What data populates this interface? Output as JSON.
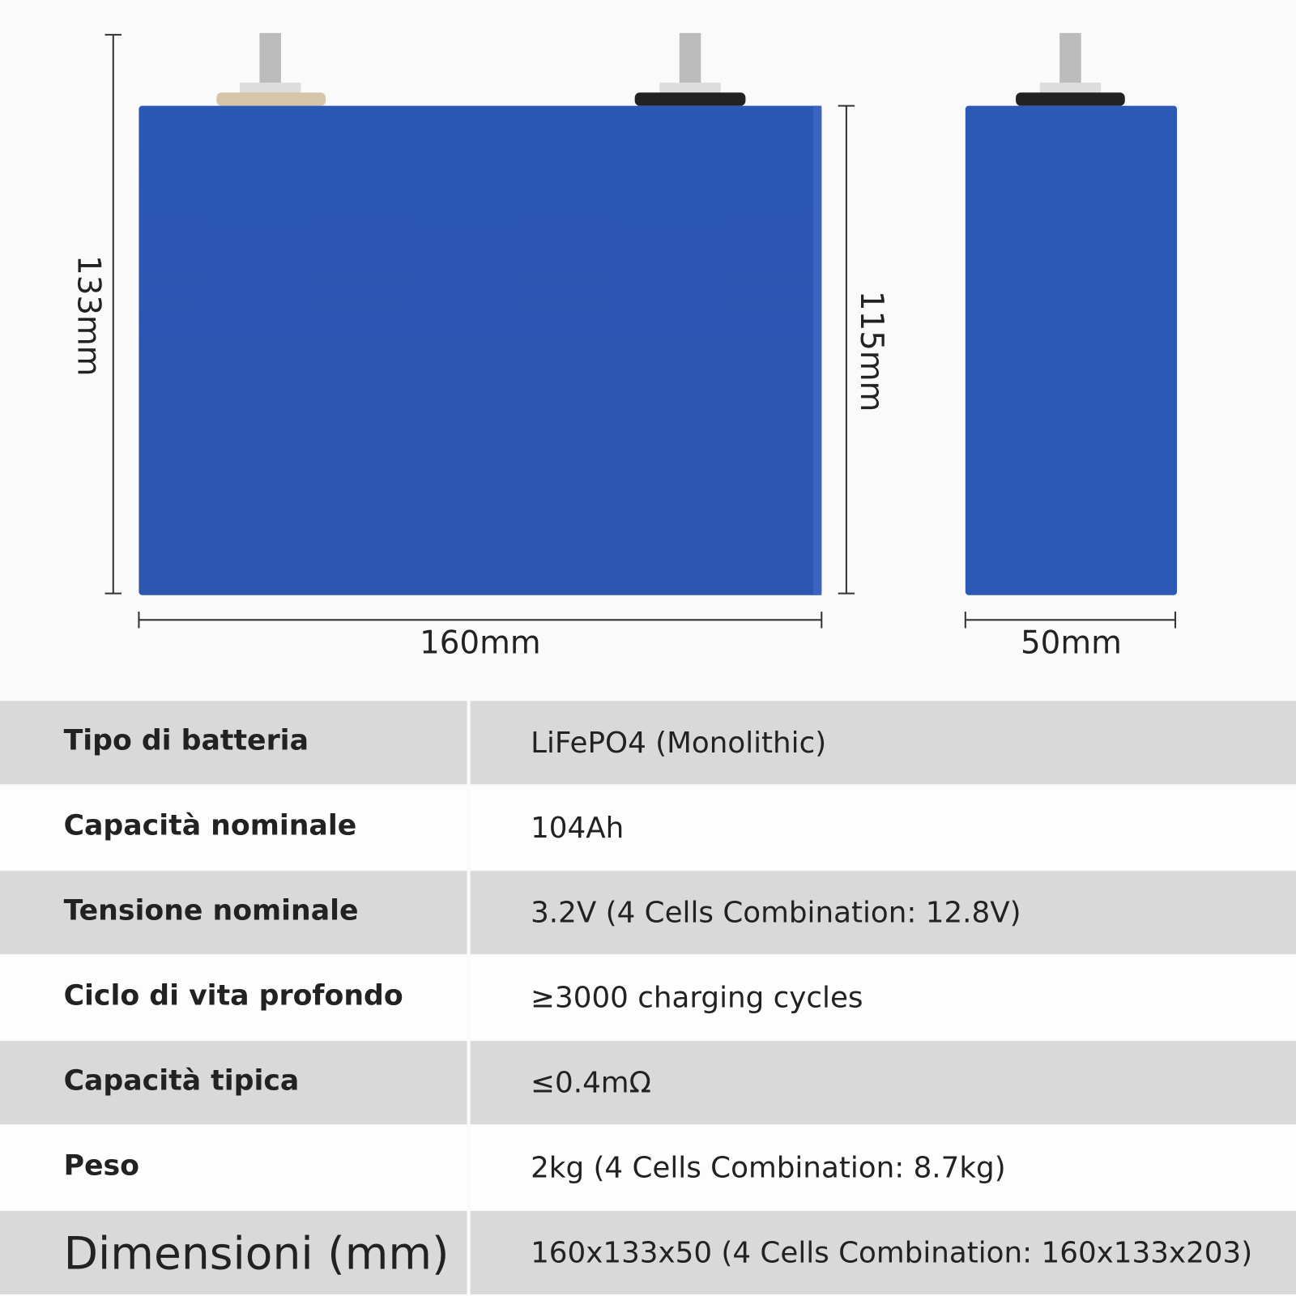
{
  "dimensions": {
    "height_total": "133mm",
    "height_body": "115mm",
    "length": "160mm",
    "width": "50mm"
  },
  "table": {
    "rows": [
      [
        "Tipo di batteria",
        "LiFePO4 (Monolithic)"
      ],
      [
        "Capacità nominale",
        "104Ah"
      ],
      [
        "Tensione nominale",
        "3.2V (4 Cells Combination: 12.8V)"
      ],
      [
        "Ciclo di vita profondo",
        "≥3000 charging cycles"
      ],
      [
        "Capacità tipica",
        "≤0.4mΩ"
      ],
      [
        "Peso",
        "2kg (4 Cells Combination: 8.7kg)"
      ],
      [
        "Dimensioni (mm)",
        "160x133x50 (4 Cells Combination: 160x133x203)"
      ]
    ]
  }
}
